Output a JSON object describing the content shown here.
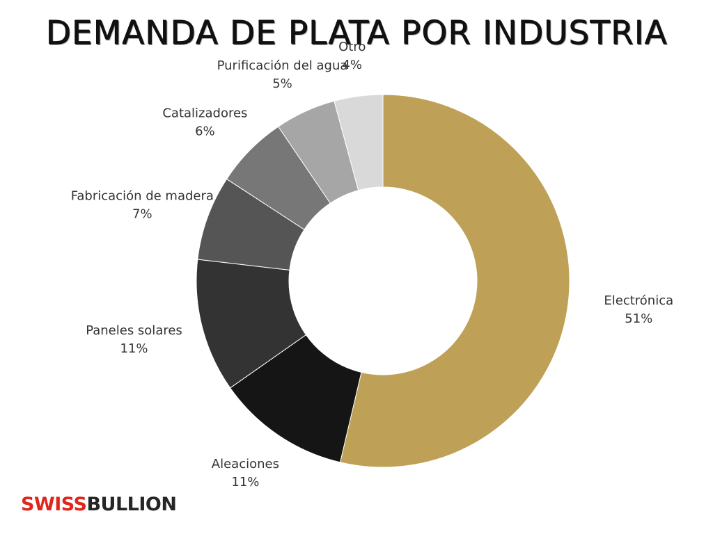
{
  "title": "DEMANDA DE PLATA POR INDUSTRIA",
  "logo": {
    "part1": "SWISS",
    "part2": "BULLION"
  },
  "chart_data": {
    "type": "pie",
    "donut": true,
    "title": "DEMANDA DE PLATA POR INDUSTRIA",
    "categories": [
      "Electrónica",
      "Aleaciones",
      "Paneles solares",
      "Fabricación de madera",
      "Catalizadores",
      "Purificación del agua",
      "Otro"
    ],
    "values": [
      51,
      11,
      11,
      7,
      6,
      5,
      4
    ],
    "value_labels": [
      "51%",
      "11%",
      "11%",
      "7%",
      "6%",
      "5%",
      "4%"
    ],
    "colors": [
      "#bea156",
      "#000000",
      "#151515",
      "#333333",
      "#555555",
      "#777777",
      "#a6a6a6",
      "#d9d9d9"
    ],
    "slice_colors": [
      "#bea156",
      "#000000",
      "#151515",
      "#333333",
      "#555555",
      "#777777",
      "#a6a6a6",
      "#d9d9d9"
    ],
    "units": "%"
  }
}
